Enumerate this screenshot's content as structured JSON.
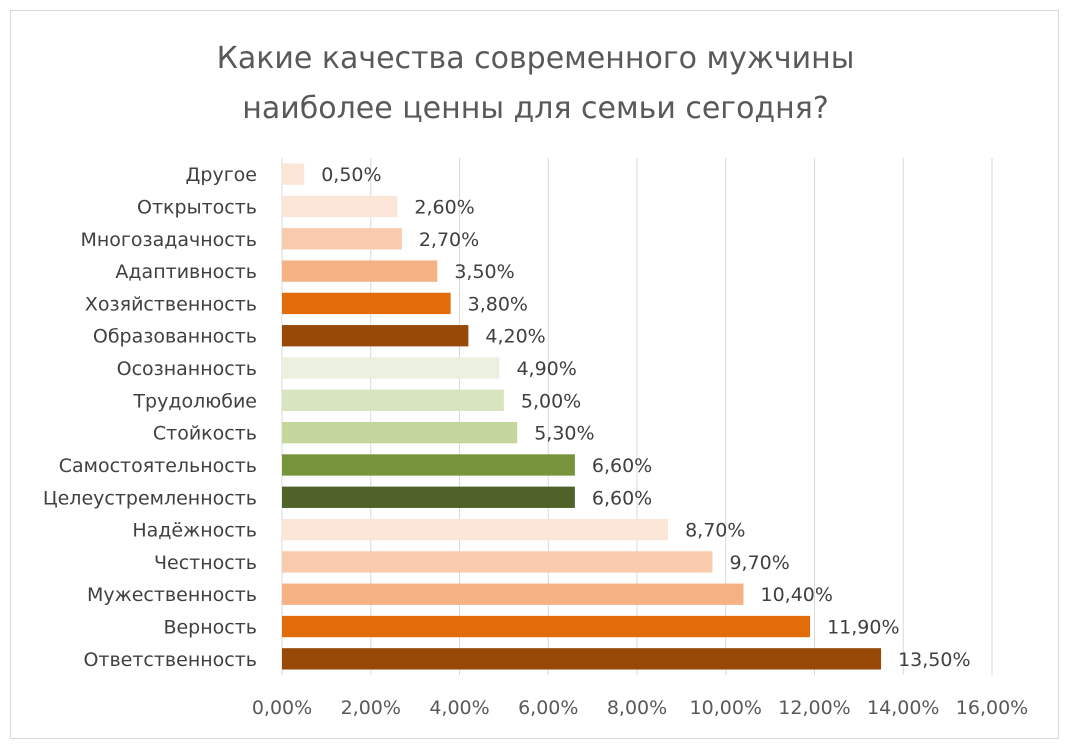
{
  "chart_data": {
    "type": "bar",
    "orientation": "horizontal",
    "title": "Какие качества современного мужчины наиболее ценны для семьи сегодня?",
    "title_lines": [
      "Какие качества современного мужчины",
      "наиболее ценны для семьи сегодня?"
    ],
    "categories": [
      "Другое",
      "Открытость",
      "Многозадачность",
      "Адаптивность",
      "Хозяйственность",
      "Образованность",
      "Осознанность",
      "Трудолюбие",
      "Стойкость",
      "Самостоятельность",
      "Целеустремленность",
      "Надёжность",
      "Честность",
      "Мужественность",
      "Верность",
      "Ответственность"
    ],
    "values": [
      0.5,
      2.6,
      2.7,
      3.5,
      3.8,
      4.2,
      4.9,
      5.0,
      5.3,
      6.6,
      6.6,
      8.7,
      9.7,
      10.4,
      11.9,
      13.5
    ],
    "value_labels": [
      "0,50%",
      "2,60%",
      "2,70%",
      "3,50%",
      "3,80%",
      "4,20%",
      "4,90%",
      "5,00%",
      "5,30%",
      "6,60%",
      "6,60%",
      "8,70%",
      "9,70%",
      "10,40%",
      "11,90%",
      "13,50%"
    ],
    "colors": [
      "#fbe5d6",
      "#fbe5d6",
      "#f8cbad",
      "#f4b183",
      "#e36c0a",
      "#984807",
      "#ebf1de",
      "#d7e4bd",
      "#c3d69b",
      "#77933c",
      "#4f6228",
      "#fbe5d6",
      "#f8cbad",
      "#f4b183",
      "#e36c0a",
      "#984807"
    ],
    "xlim": [
      0,
      16
    ],
    "xticks": [
      0,
      2,
      4,
      6,
      8,
      10,
      12,
      14,
      16
    ],
    "xtick_labels": [
      "0,00%",
      "2,00%",
      "4,00%",
      "6,00%",
      "8,00%",
      "10,00%",
      "12,00%",
      "14,00%",
      "16,00%"
    ],
    "grid": true,
    "xlabel": "",
    "ylabel": ""
  }
}
